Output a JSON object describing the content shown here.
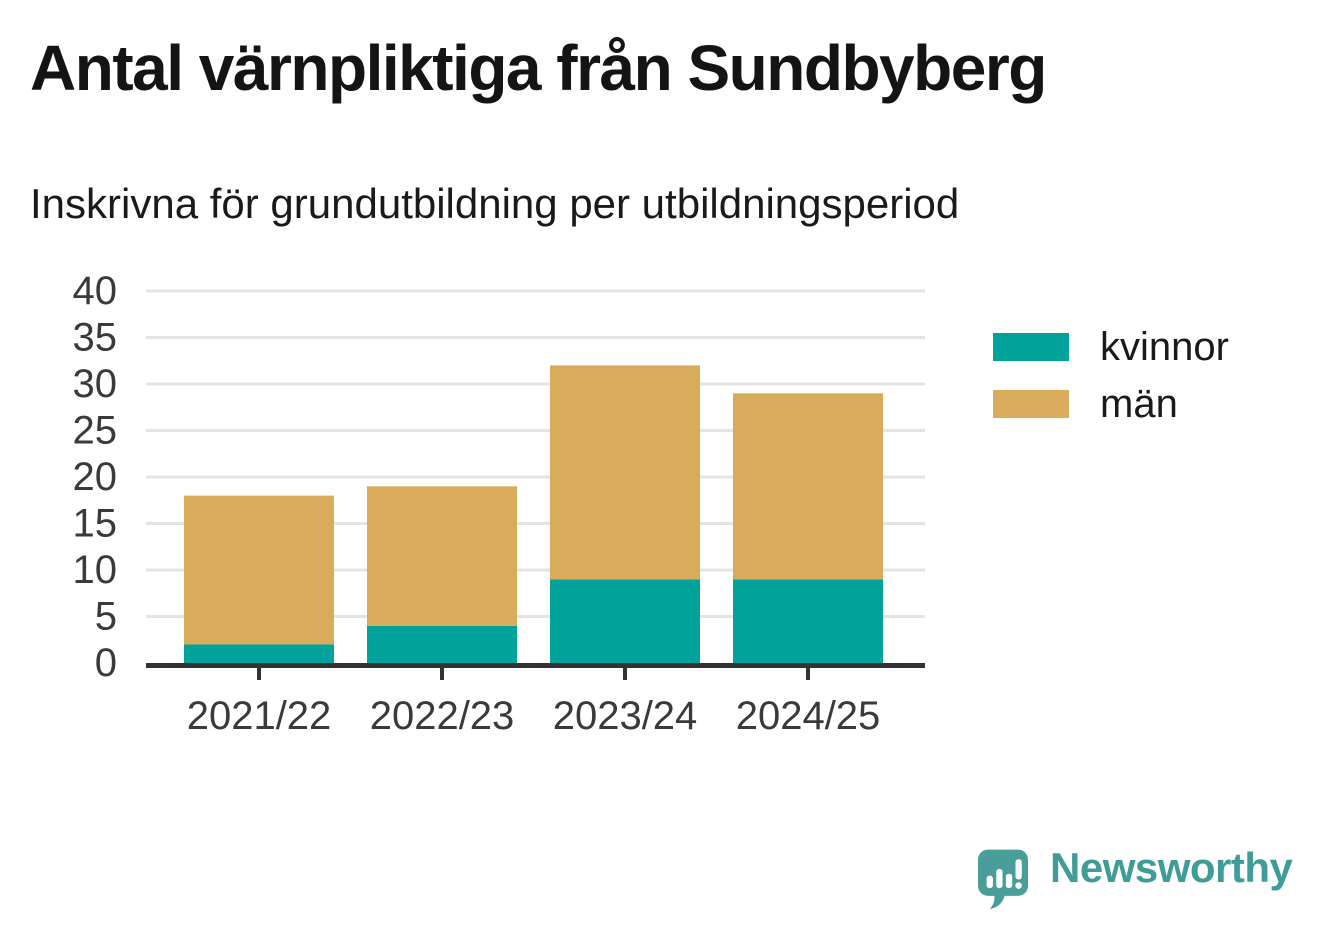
{
  "header": {
    "title": "Antal värnpliktiga från Sundbyberg",
    "subtitle": "Inskrivna för grundutbildning per utbildningsperiod"
  },
  "chart_data": {
    "type": "bar",
    "stacked": true,
    "title": "Antal värnpliktiga från Sundbyberg",
    "subtitle": "Inskrivna för grundutbildning per utbildningsperiod",
    "categories": [
      "2021/22",
      "2022/23",
      "2023/24",
      "2024/25"
    ],
    "series": [
      {
        "name": "kvinnor",
        "color": "#00A29A",
        "values": [
          2,
          4,
          9,
          9
        ]
      },
      {
        "name": "män",
        "color": "#D9AC5C",
        "values": [
          16,
          15,
          23,
          20
        ]
      }
    ],
    "stacked_totals": [
      18,
      19,
      32,
      29
    ],
    "xlabel": "",
    "ylabel": "",
    "ylim": [
      0,
      40
    ],
    "yticks": [
      0,
      5,
      10,
      15,
      20,
      25,
      30,
      35,
      40
    ],
    "grid": true,
    "legend_position": "right",
    "colors": {
      "grid": "#E4E4E4",
      "axis": "#333333",
      "tick_labels": "#3A3A3A"
    }
  },
  "branding": {
    "logo_text": "Newsworthy",
    "wordmark_color": "#3F9C96",
    "icon_color": "#4A9E99"
  }
}
